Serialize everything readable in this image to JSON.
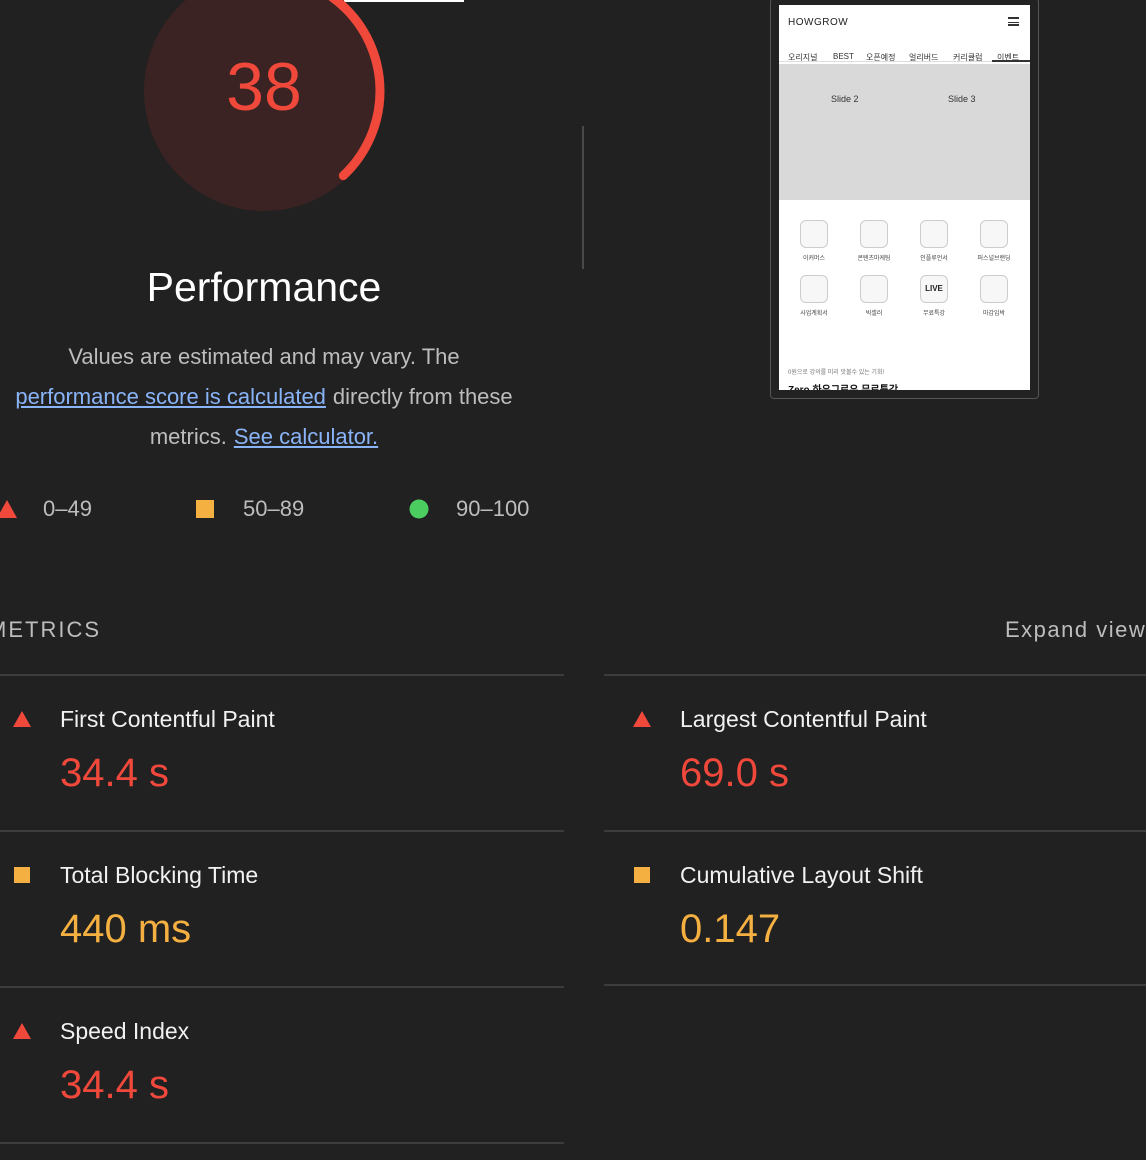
{
  "gauge": {
    "score": 38,
    "max": 100,
    "title": "Performance",
    "color": "#f0493c"
  },
  "description": {
    "line1": "Values are estimated and may vary. The",
    "link1": "performance score is calculated",
    "line2": "directly from these",
    "line3": "metrics.",
    "link2": "See calculator."
  },
  "legend": [
    {
      "label": "0–49",
      "shape": "triangle",
      "color": "#f0493c"
    },
    {
      "label": "50–89",
      "shape": "square",
      "color": "#f5b042"
    },
    {
      "label": "90–100",
      "shape": "circle",
      "color": "#4ccd60"
    }
  ],
  "thumbnail": {
    "brand": "HOWGROW",
    "tabs": [
      "오리지널",
      "BEST",
      "오픈예정",
      "얼리버드",
      "커리큘럼",
      "이벤트"
    ],
    "slides": [
      "Slide 2",
      "Slide 3"
    ],
    "icons": [
      "이커머스",
      "콘텐츠마케팅",
      "인플루언서",
      "퍼스널브랜딩",
      "사업계획서",
      "빅셀러",
      "무료특강",
      "마감임박"
    ],
    "live": "LIVE",
    "promo": "0원으로 강의를 미리 맛볼수 있는 기회!",
    "headline": "Zero 하우그로우 무료특강"
  },
  "metrics_header": "METRICS",
  "expand": "Expand view",
  "metrics": [
    {
      "title": "First Contentful Paint",
      "value": "34.4 s",
      "color": "#f0493c"
    },
    {
      "title": "Largest Contentful Paint",
      "value": "69.0 s",
      "color": "#f0493c"
    },
    {
      "title": "Total Blocking Time",
      "value": "440 ms",
      "color": "#f5b042"
    },
    {
      "title": "Cumulative Layout Shift",
      "value": "0.147",
      "color": "#f5b042"
    },
    {
      "title": "Speed Index",
      "value": "34.4 s",
      "color": "#f0493c"
    }
  ]
}
